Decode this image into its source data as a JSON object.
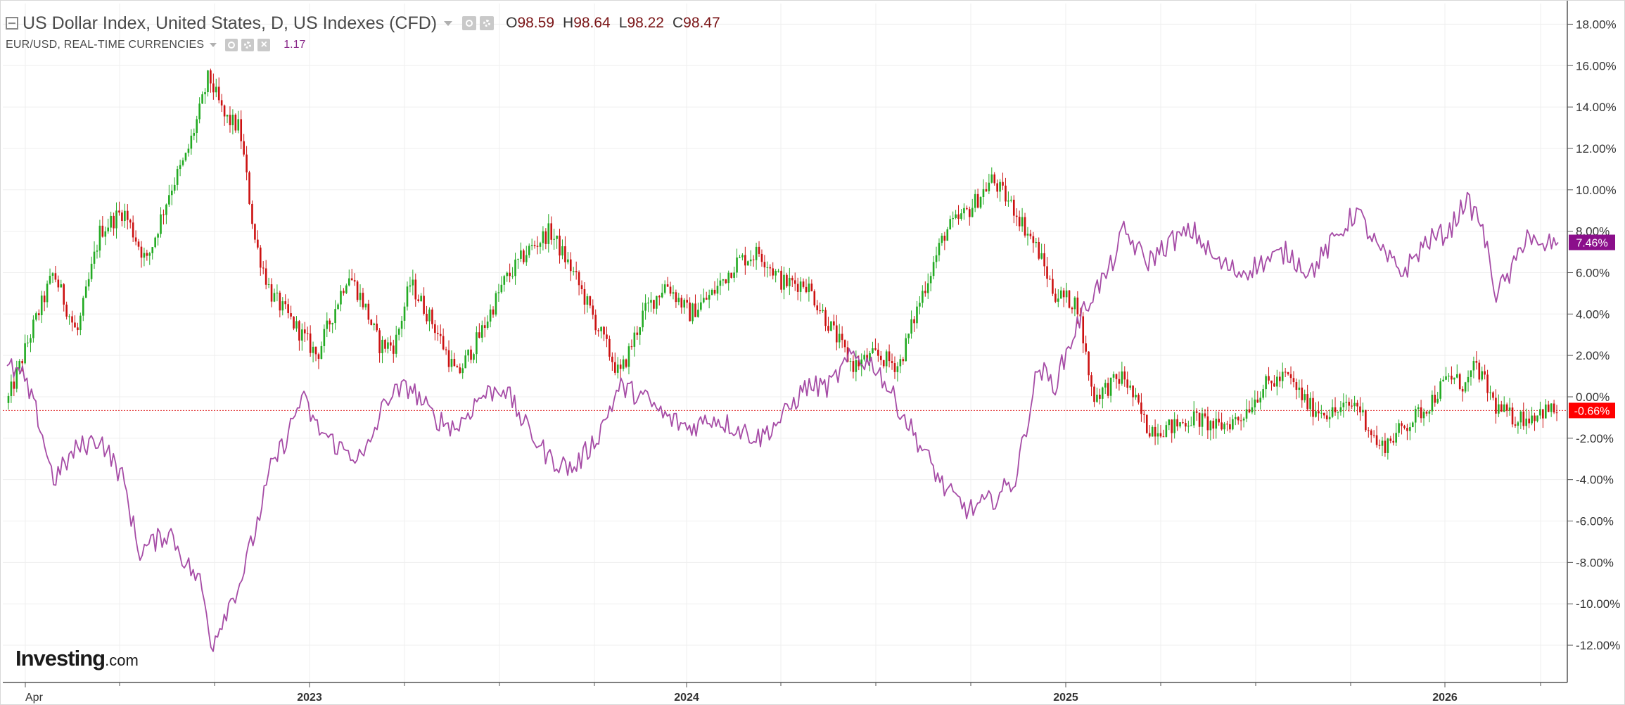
{
  "legend": {
    "main_title": "US Dollar Index, United States, D, US Indexes (CFD)",
    "ohlc": [
      {
        "key": "O",
        "value": "98.59"
      },
      {
        "key": "H",
        "value": "98.64"
      },
      {
        "key": "L",
        "value": "98.22"
      },
      {
        "key": "C",
        "value": "98.47"
      }
    ],
    "sub_title": "EUR/USD, REAL-TIME CURRENCIES",
    "sub_value": "1.17"
  },
  "logo": {
    "text": "Investing",
    "suffix": ".com"
  },
  "colors": {
    "up_candle": "#22aa22",
    "down_candle": "#cc1111",
    "compare_line": "#a64ca6",
    "zero_line": "#e03030",
    "grid": "#efefef",
    "axis": "#555555",
    "badge_main": "#ff0000",
    "badge_compare": "#8b0f8b"
  },
  "chart_data": {
    "type": "line",
    "title": "US Dollar Index, United States, D, US Indexes (CFD)",
    "x_ticks": [
      "Apr",
      "2023",
      "2024",
      "2025",
      "2026"
    ],
    "y_ticks": [
      "18.00%",
      "16.00%",
      "14.00%",
      "12.00%",
      "10.00%",
      "8.00%",
      "6.00%",
      "4.00%",
      "2.00%",
      "0.00%",
      "-2.00%",
      "-4.00%",
      "-6.00%",
      "-8.00%",
      "-10.00%",
      "-12.00%"
    ],
    "ylim": [
      -13.8,
      19.0
    ],
    "xlim": [
      0,
      100
    ],
    "reference_line": -0.66,
    "last_labels": [
      {
        "series": "US Dollar Index",
        "value": "-0.66%"
      },
      {
        "series": "EUR/USD",
        "value": "7.46%"
      }
    ],
    "series": [
      {
        "name": "US Dollar Index",
        "style": "candlestick",
        "x": [
          0,
          1.5,
          3,
          4.5,
          6,
          7.5,
          9,
          10.5,
          11.5,
          12.5,
          13,
          14,
          15,
          16,
          17,
          18,
          19,
          20,
          21,
          22,
          23,
          24,
          25,
          26,
          27.5,
          29,
          30.5,
          32,
          33.5,
          35,
          36.5,
          38,
          39.5,
          41,
          42.5,
          44,
          45.5,
          47,
          48.5,
          50,
          51.5,
          53,
          54.5,
          56,
          57.5,
          59,
          60.5,
          62,
          63.5,
          65,
          66.5,
          67.5,
          69,
          70,
          71,
          72,
          73.5,
          75,
          76.5,
          78,
          79.5,
          81,
          82.5,
          84,
          85.5,
          87,
          88.5,
          90,
          91.5,
          93,
          94,
          94.7,
          96,
          97,
          98,
          98.8,
          99.5
        ],
        "values": [
          -0.3,
          3.0,
          6.0,
          3.0,
          8.0,
          9.0,
          6.5,
          10.0,
          11.5,
          14.0,
          15.5,
          13.5,
          13.0,
          7.5,
          5.0,
          4.0,
          3.0,
          2.0,
          4.0,
          6.0,
          4.5,
          2.5,
          2.5,
          5.5,
          3.5,
          1.0,
          3.0,
          5.5,
          7.0,
          8.0,
          6.0,
          3.5,
          1.0,
          4.0,
          5.5,
          4.0,
          5.0,
          6.5,
          7.0,
          5.5,
          5.5,
          3.5,
          1.5,
          2.0,
          1.5,
          5.0,
          8.0,
          9.0,
          10.5,
          9.0,
          7.0,
          5.0,
          4.5,
          0.0,
          0.5,
          1.0,
          -1.5,
          -1.5,
          -1.0,
          -1.5,
          -1.0,
          0.5,
          1.0,
          -0.5,
          -0.8,
          -0.3,
          -2.5,
          -1.5,
          -0.5,
          1.0,
          0.5,
          1.5,
          -0.5,
          -1.0,
          -1.0,
          -0.7,
          -0.66
        ]
      },
      {
        "name": "EUR/USD",
        "style": "line",
        "x": [
          0,
          1,
          2,
          3,
          4.5,
          6,
          7.5,
          8.5,
          9.5,
          10.5,
          11.5,
          12.5,
          13.2,
          14,
          15,
          16,
          17,
          18,
          19,
          20,
          21.5,
          23,
          24.5,
          26,
          27.5,
          29,
          30.5,
          32,
          33.5,
          35,
          36.5,
          38,
          39.5,
          41,
          42.5,
          44,
          45.5,
          47,
          48.5,
          50,
          51.5,
          53,
          54.5,
          56,
          57.5,
          59,
          60.5,
          62,
          63.5,
          65,
          66.5,
          67.5,
          69,
          70,
          71,
          72,
          73.5,
          75,
          76.5,
          78,
          79.5,
          81,
          82.5,
          84,
          85.5,
          87,
          88.5,
          90,
          91.5,
          93,
          94,
          95,
          96,
          97,
          98,
          98.8,
          99.5
        ],
        "values": [
          1.5,
          1.0,
          -1.0,
          -4.0,
          -2.5,
          -2.0,
          -4.0,
          -7.5,
          -7.0,
          -6.5,
          -8.0,
          -9.0,
          -12.0,
          -10.5,
          -9.0,
          -6.5,
          -3.5,
          -2.0,
          0.0,
          -1.5,
          -2.5,
          -3.0,
          0.0,
          0.5,
          -1.0,
          -1.5,
          0.0,
          0.5,
          -1.5,
          -3.0,
          -3.5,
          -2.0,
          0.5,
          0.0,
          -1.0,
          -1.5,
          -1.0,
          -1.5,
          -2.0,
          -1.0,
          0.5,
          0.5,
          2.0,
          1.5,
          -0.5,
          -2.5,
          -4.5,
          -5.5,
          -5.0,
          -4.0,
          1.5,
          0.5,
          3.5,
          5.0,
          6.0,
          8.0,
          6.5,
          7.5,
          8.0,
          6.5,
          6.0,
          6.5,
          7.0,
          6.0,
          7.5,
          9.0,
          7.0,
          6.0,
          7.5,
          8.0,
          9.5,
          8.5,
          5.0,
          6.0,
          8.0,
          7.0,
          7.46
        ]
      }
    ]
  }
}
